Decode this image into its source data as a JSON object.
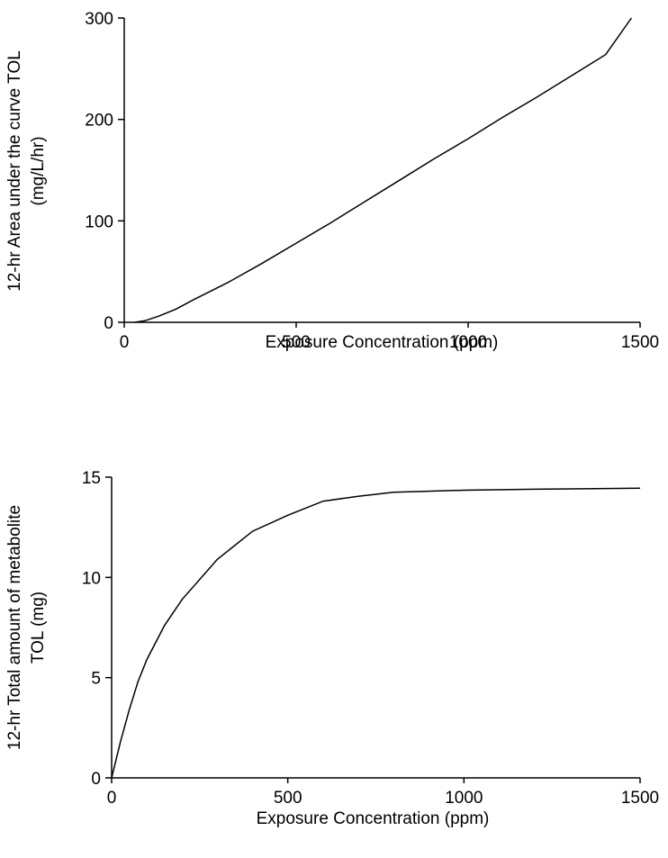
{
  "chart_data": [
    {
      "type": "line",
      "title": "",
      "xlabel": "Exposure Concentration (ppm)",
      "ylabel_lines": [
        "12-hr Area under the curve TOL",
        "(mg/L/hr)"
      ],
      "xlim": [
        0,
        1500
      ],
      "ylim": [
        0,
        300
      ],
      "xticks": [
        "0",
        "500",
        "1000",
        "1500"
      ],
      "yticks": [
        "0",
        "100",
        "200",
        "300"
      ],
      "grid": false,
      "series": [
        {
          "x": [
            30,
            60,
            100,
            150,
            200,
            300,
            400,
            500,
            600,
            700,
            800,
            900,
            1000,
            1100,
            1200,
            1300,
            1400,
            1475
          ],
          "y": [
            0,
            1.5,
            6,
            13,
            22,
            39,
            58,
            78,
            98,
            119,
            140,
            161,
            181,
            202,
            222,
            243,
            264,
            300
          ]
        }
      ]
    },
    {
      "type": "line",
      "title": "",
      "xlabel": "Exposure Concentration (ppm)",
      "ylabel_lines": [
        "12-hr Total amount of metabolite",
        "TOL (mg)"
      ],
      "xlim": [
        0,
        1500
      ],
      "ylim": [
        0,
        15
      ],
      "xticks": [
        "0",
        "500",
        "1000",
        "1500"
      ],
      "yticks": [
        "0",
        "5",
        "10",
        "15"
      ],
      "grid": false,
      "series": [
        {
          "x": [
            0,
            25,
            50,
            75,
            100,
            150,
            200,
            300,
            400,
            500,
            600,
            700,
            800,
            1000,
            1200,
            1500
          ],
          "y": [
            0,
            1.8,
            3.4,
            4.8,
            5.9,
            7.6,
            8.9,
            10.9,
            12.3,
            13.1,
            13.8,
            14.05,
            14.25,
            14.35,
            14.4,
            14.45
          ]
        }
      ]
    }
  ]
}
